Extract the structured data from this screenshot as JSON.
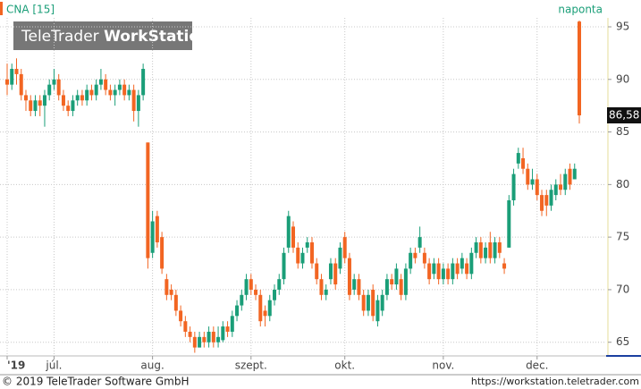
{
  "chart_data": {
    "type": "candlestick",
    "symbol": "CNA [15]",
    "interval": "naponta",
    "logo": [
      "TeleTrader ",
      "WorkStation"
    ],
    "footer_left": "© 2019 TeleTrader Software GmbH",
    "footer_right": "https://workstation.teletrader.com",
    "up_color": "#1a9e78",
    "down_color": "#f26522",
    "ylim": [
      63.7,
      95.85
    ],
    "yticks": [
      65,
      70,
      75,
      80,
      85,
      90,
      95
    ],
    "grid": true,
    "last_price": {
      "value": 86.58,
      "label": "86,58"
    },
    "xticks": [
      {
        "value": 0,
        "label": "'19"
      },
      {
        "value": 10,
        "label": "júl."
      },
      {
        "value": 31,
        "label": "aug."
      },
      {
        "value": 52,
        "label": "szept."
      },
      {
        "value": 72,
        "label": "okt."
      },
      {
        "value": 93,
        "label": "nov."
      },
      {
        "value": 113,
        "label": "dec."
      }
    ],
    "open": [
      90,
      89.5,
      91,
      90.5,
      88.5,
      88,
      87,
      88,
      87.5,
      88.5,
      89.5,
      90,
      88.5,
      87.5,
      87,
      88,
      88.5,
      88,
      89,
      88.5,
      89.5,
      90,
      89,
      88.5,
      89,
      89.5,
      88.5,
      89,
      87,
      88.5,
      84,
      73.5,
      77,
      75,
      71,
      70,
      69.5,
      68,
      67,
      66,
      65.5,
      64.5,
      65.5,
      65,
      66,
      65,
      65.2,
      66.5,
      66,
      67.5,
      68.5,
      69.5,
      71,
      70,
      69.5,
      68,
      67.5,
      69,
      70,
      71,
      74,
      76,
      74,
      72.5,
      74,
      74.5,
      72.5,
      71,
      69.5,
      71,
      72.5,
      72,
      75,
      73,
      70,
      71,
      69.5,
      68,
      70,
      67,
      68,
      69.5,
      71,
      70.5,
      71,
      69.5,
      72,
      73.5,
      74,
      73.5,
      72.5,
      71.5,
      72.5,
      71,
      72,
      71,
      72.5,
      72,
      72.5,
      71.5,
      73.5,
      74.5,
      73,
      74.5,
      73,
      74.5,
      72.5,
      74,
      78.5,
      82,
      82.5,
      81.5,
      80,
      80.5,
      79,
      79,
      78,
      79,
      80,
      79.5,
      81.5,
      80.5,
      95.5
    ],
    "high": [
      91.5,
      91.5,
      92,
      91,
      89,
      88.5,
      88.5,
      88.5,
      89,
      90,
      91,
      90.5,
      89,
      88,
      88.5,
      89,
      89,
      89.5,
      89.5,
      90,
      91,
      90.5,
      89.5,
      89.5,
      90,
      90,
      89.5,
      89.5,
      89,
      91.5,
      84,
      77.5,
      77.5,
      75.5,
      71.5,
      70.5,
      70,
      68.5,
      67.5,
      66.5,
      66,
      66,
      66,
      66.5,
      66.5,
      66.5,
      67,
      67,
      68,
      69,
      70,
      71.5,
      71.5,
      70.5,
      70,
      68.5,
      69.5,
      70.5,
      71.5,
      74,
      77.5,
      76.5,
      74.5,
      74,
      75,
      75,
      73,
      71.5,
      70.5,
      73,
      73,
      74.5,
      75.5,
      73.5,
      71.5,
      71.5,
      70,
      70,
      70.5,
      69.5,
      70,
      71.5,
      71.5,
      72.5,
      71.5,
      72.5,
      74,
      74,
      76,
      74,
      73,
      73,
      73,
      72.5,
      72.5,
      73,
      73,
      73.5,
      73,
      74,
      75,
      75,
      74.5,
      75.5,
      75,
      75,
      73,
      79,
      81.5,
      83.5,
      83.5,
      82,
      81.5,
      81,
      79.5,
      79.5,
      80,
      80.5,
      81,
      81.5,
      82,
      82,
      95.6
    ],
    "low": [
      88.5,
      89,
      89.5,
      88,
      87,
      86.5,
      86.5,
      86.5,
      85.5,
      88,
      89,
      88,
      87,
      86.5,
      86.5,
      87.5,
      87.5,
      87.5,
      88,
      88,
      89,
      88.5,
      88,
      87.5,
      88.5,
      88,
      88,
      86,
      85.5,
      88,
      72,
      73,
      74,
      71.5,
      69,
      69,
      67.5,
      66.5,
      65.5,
      65,
      64,
      64.5,
      64.5,
      64.5,
      64.5,
      64.5,
      65,
      65.5,
      65.5,
      67,
      68,
      69,
      69.5,
      69,
      66.5,
      66.5,
      67,
      68.5,
      69.5,
      70.5,
      73.5,
      73.5,
      72,
      72,
      73.5,
      72,
      70.5,
      69,
      69,
      70.5,
      70,
      71.5,
      72.5,
      69,
      69.5,
      69,
      67.5,
      67.5,
      67,
      66.5,
      67.5,
      69,
      70,
      70,
      69,
      69,
      71.5,
      72.5,
      73.5,
      72,
      70.5,
      71,
      70.5,
      70.5,
      70.5,
      70.5,
      71,
      71.5,
      71,
      71,
      73,
      72.5,
      72.5,
      72.5,
      72.5,
      73,
      71.5,
      74,
      78,
      81.5,
      81,
      79.5,
      79.5,
      78.5,
      77,
      77,
      77.5,
      78.5,
      79,
      79,
      79.5,
      80.5,
      85.8
    ],
    "close": [
      89.5,
      91,
      90.5,
      88.5,
      88,
      87,
      88,
      87.5,
      88.5,
      89.5,
      90,
      88.5,
      87.5,
      87,
      88,
      88.5,
      88,
      89,
      88.5,
      89.5,
      90,
      89,
      88.5,
      89,
      89.5,
      88.5,
      89,
      87,
      88.5,
      91,
      73,
      76.5,
      74.5,
      72,
      69.5,
      69.5,
      68,
      67,
      66,
      65.5,
      64.5,
      65.5,
      65,
      66,
      65,
      65.5,
      66.5,
      66,
      67.5,
      68.5,
      69.5,
      71,
      70,
      69.5,
      67,
      67.5,
      69,
      70,
      71,
      73.5,
      77,
      74,
      72.5,
      73.5,
      74.5,
      72.5,
      71,
      69.5,
      70,
      72.5,
      70.5,
      74,
      73,
      69.5,
      71,
      69.5,
      68,
      69.5,
      67.5,
      69,
      69.5,
      71,
      70.5,
      72,
      69.5,
      72,
      73.5,
      73,
      75,
      72.5,
      71,
      72.5,
      71,
      72,
      71,
      72.5,
      71.5,
      73,
      71.5,
      73.5,
      74.5,
      73,
      74,
      73,
      74.5,
      73.5,
      72,
      78.5,
      81,
      83,
      81.5,
      80,
      80.5,
      79,
      77.5,
      78,
      79.5,
      80,
      79.5,
      81,
      80,
      81.5,
      86.58
    ]
  }
}
